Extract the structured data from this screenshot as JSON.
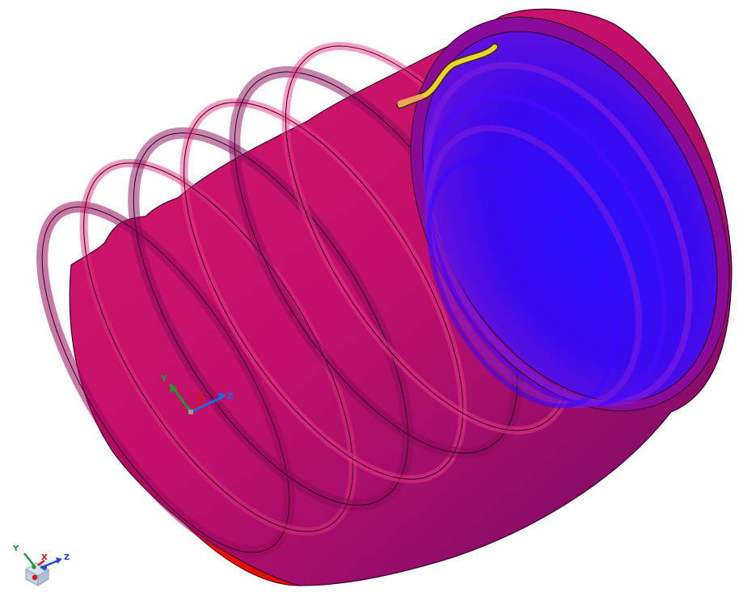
{
  "viewport": {
    "background": "#ffffff"
  },
  "model": {
    "type": "corrugated-bellows-tube",
    "shading": "deviation-color-map",
    "colors": {
      "outer_base": "#ff1200",
      "outer_mid": "#d8106a",
      "outer_shadow": "#7a0060",
      "inner_deep": "#1a00ff",
      "inner_mid": "#6a10e0",
      "rim": "#8a0a9a",
      "highlight": "#ff4fa8",
      "selected_edge": "#e8d430"
    }
  },
  "triad_origin": {
    "label_y": "Y",
    "label_x": "X",
    "label_z": "Z",
    "color_y": "#1a9a2a",
    "color_x": "#e01010",
    "color_z": "#1a6ae8"
  },
  "triad_corner": {
    "label_y": "Y",
    "label_x": "X",
    "label_z": "Z",
    "color_y": "#1a9a2a",
    "color_x": "#e01010",
    "color_z": "#1a4ae0",
    "cube_icon": "view-cube-icon"
  }
}
